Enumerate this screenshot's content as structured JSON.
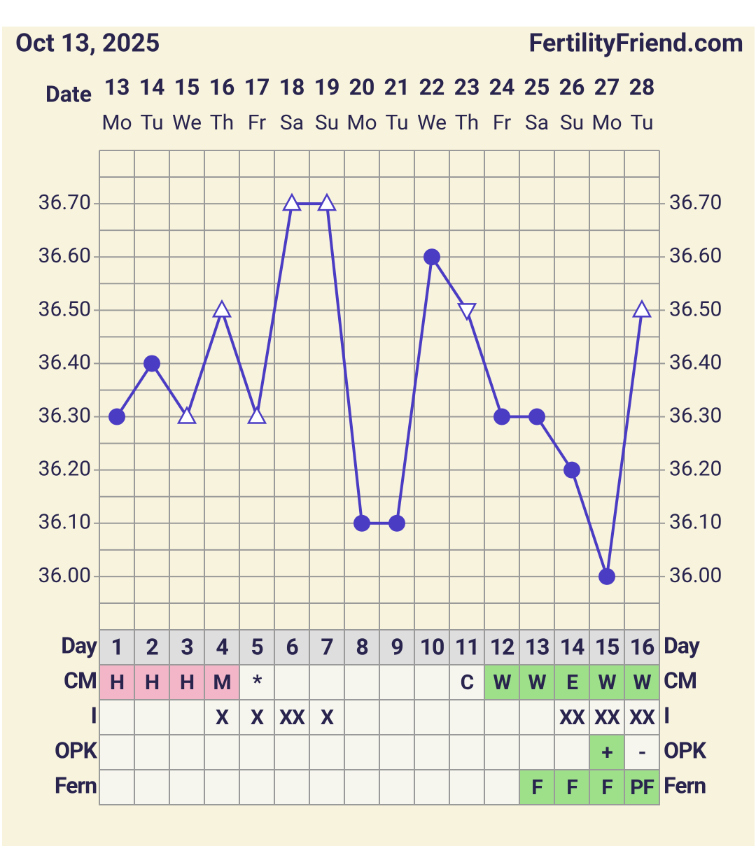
{
  "chart_data": {
    "type": "line",
    "title": "Oct 13, 2025",
    "source": "FertilityFriend.com",
    "date_label": "Date",
    "categories": [
      13,
      14,
      15,
      16,
      17,
      18,
      19,
      20,
      21,
      22,
      23,
      24,
      25,
      26,
      27,
      28
    ],
    "weekdays": [
      "Mo",
      "Tu",
      "We",
      "Th",
      "Fr",
      "Sa",
      "Su",
      "Mo",
      "Tu",
      "We",
      "Th",
      "Fr",
      "Sa",
      "Su",
      "Mo",
      "Tu"
    ],
    "values": [
      36.3,
      36.4,
      36.3,
      36.5,
      36.3,
      36.7,
      36.7,
      36.1,
      36.1,
      36.6,
      36.5,
      36.3,
      36.3,
      36.2,
      36.0,
      36.5
    ],
    "markers": [
      "circle",
      "circle",
      "triangle",
      "triangle",
      "triangle",
      "triangle",
      "triangle",
      "circle",
      "circle",
      "circle",
      "triangle-down",
      "circle",
      "circle",
      "circle",
      "circle",
      "triangle"
    ],
    "color": "#4b3cc4",
    "ylim": [
      35.9,
      36.8
    ],
    "yticks": [
      {
        "value": 36.0,
        "label": "36.00"
      },
      {
        "value": 36.1,
        "label": "36.10"
      },
      {
        "value": 36.2,
        "label": "36.20"
      },
      {
        "value": 36.3,
        "label": "36.30"
      },
      {
        "value": 36.4,
        "label": "36.40"
      },
      {
        "value": 36.5,
        "label": "36.50"
      },
      {
        "value": 36.6,
        "label": "36.60"
      },
      {
        "value": 36.7,
        "label": "36.70"
      }
    ],
    "grid": true,
    "cycle_days": {
      "label": "Day",
      "values": [
        1,
        2,
        3,
        4,
        5,
        6,
        7,
        8,
        9,
        10,
        11,
        12,
        13,
        14,
        15,
        16
      ]
    },
    "rows": [
      {
        "label": "CM",
        "values": [
          "H",
          "H",
          "H",
          "M",
          "*",
          null,
          null,
          null,
          null,
          null,
          "C",
          "W",
          "W",
          "E",
          "W",
          "W"
        ],
        "colors": [
          "#f2b6c8",
          "#f2b6c8",
          "#f2b6c8",
          "#f2b6c8",
          null,
          null,
          null,
          null,
          null,
          null,
          null,
          "#9ee08a",
          "#9ee08a",
          "#9ee08a",
          "#9ee08a",
          "#9ee08a"
        ]
      },
      {
        "label": "I",
        "values": [
          null,
          null,
          null,
          "X",
          "X",
          "XX",
          "X",
          null,
          null,
          null,
          null,
          null,
          null,
          "XX",
          "XX",
          "XX"
        ],
        "colors": [
          null,
          null,
          null,
          null,
          null,
          null,
          null,
          null,
          null,
          null,
          null,
          null,
          null,
          null,
          null,
          null
        ]
      },
      {
        "label": "OPK",
        "values": [
          null,
          null,
          null,
          null,
          null,
          null,
          null,
          null,
          null,
          null,
          null,
          null,
          null,
          null,
          "+",
          "-"
        ],
        "colors": [
          null,
          null,
          null,
          null,
          null,
          null,
          null,
          null,
          null,
          null,
          null,
          null,
          null,
          null,
          "#9ee08a",
          null
        ]
      },
      {
        "label": "Fern",
        "values": [
          null,
          null,
          null,
          null,
          null,
          null,
          null,
          null,
          null,
          null,
          null,
          null,
          "F",
          "F",
          "F",
          "PF"
        ],
        "colors": [
          null,
          null,
          null,
          null,
          null,
          null,
          null,
          null,
          null,
          null,
          null,
          null,
          "#9ee08a",
          "#9ee08a",
          "#9ee08a",
          "#9ee08a"
        ]
      }
    ]
  }
}
